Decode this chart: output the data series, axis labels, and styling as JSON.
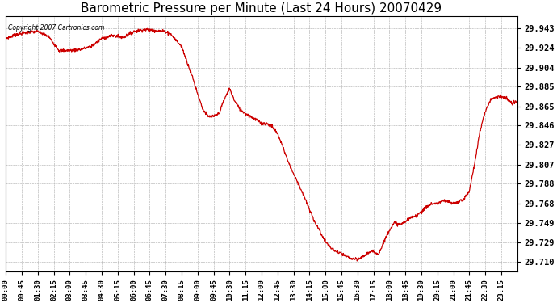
{
  "title": "Barometric Pressure per Minute (Last 24 Hours) 20070429",
  "copyright_text": "Copyright 2007 Cartronics.com",
  "line_color": "#cc0000",
  "background_color": "#ffffff",
  "grid_color": "#aaaaaa",
  "title_fontsize": 11,
  "yticks": [
    29.71,
    29.729,
    29.749,
    29.768,
    29.788,
    29.807,
    29.827,
    29.846,
    29.865,
    29.885,
    29.904,
    29.924,
    29.943
  ],
  "ylim": [
    29.7,
    29.955
  ],
  "xtick_labels": [
    "00:00",
    "00:45",
    "01:30",
    "02:15",
    "03:00",
    "03:45",
    "04:30",
    "05:15",
    "06:00",
    "06:45",
    "07:30",
    "08:15",
    "09:00",
    "09:45",
    "10:30",
    "11:15",
    "12:00",
    "12:45",
    "13:30",
    "14:15",
    "15:00",
    "15:45",
    "16:30",
    "17:15",
    "18:00",
    "18:45",
    "19:30",
    "20:15",
    "21:00",
    "21:45",
    "22:30",
    "23:15"
  ],
  "key_points": [
    [
      0,
      29.933
    ],
    [
      30,
      29.937
    ],
    [
      60,
      29.939
    ],
    [
      90,
      29.94
    ],
    [
      120,
      29.935
    ],
    [
      150,
      29.921
    ],
    [
      165,
      29.921
    ],
    [
      180,
      29.921
    ],
    [
      210,
      29.922
    ],
    [
      240,
      29.925
    ],
    [
      270,
      29.933
    ],
    [
      300,
      29.936
    ],
    [
      330,
      29.934
    ],
    [
      360,
      29.94
    ],
    [
      390,
      29.942
    ],
    [
      420,
      29.941
    ],
    [
      450,
      29.94
    ],
    [
      465,
      29.937
    ],
    [
      495,
      29.925
    ],
    [
      510,
      29.91
    ],
    [
      525,
      29.895
    ],
    [
      540,
      29.878
    ],
    [
      555,
      29.862
    ],
    [
      570,
      29.855
    ],
    [
      585,
      29.855
    ],
    [
      600,
      29.858
    ],
    [
      615,
      29.872
    ],
    [
      630,
      29.883
    ],
    [
      645,
      29.87
    ],
    [
      660,
      29.862
    ],
    [
      675,
      29.858
    ],
    [
      690,
      29.855
    ],
    [
      705,
      29.852
    ],
    [
      720,
      29.848
    ],
    [
      735,
      29.848
    ],
    [
      750,
      29.845
    ],
    [
      765,
      29.838
    ],
    [
      780,
      29.825
    ],
    [
      795,
      29.81
    ],
    [
      810,
      29.798
    ],
    [
      825,
      29.787
    ],
    [
      840,
      29.775
    ],
    [
      855,
      29.762
    ],
    [
      870,
      29.75
    ],
    [
      885,
      29.74
    ],
    [
      900,
      29.73
    ],
    [
      915,
      29.724
    ],
    [
      930,
      29.72
    ],
    [
      945,
      29.718
    ],
    [
      960,
      29.715
    ],
    [
      975,
      29.713
    ],
    [
      990,
      29.712
    ],
    [
      1005,
      29.715
    ],
    [
      1020,
      29.719
    ],
    [
      1035,
      29.72
    ],
    [
      1050,
      29.718
    ],
    [
      1065,
      29.73
    ],
    [
      1080,
      29.742
    ],
    [
      1095,
      29.749
    ],
    [
      1110,
      29.747
    ],
    [
      1125,
      29.75
    ],
    [
      1140,
      29.754
    ],
    [
      1155,
      29.756
    ],
    [
      1170,
      29.76
    ],
    [
      1185,
      29.765
    ],
    [
      1200,
      29.768
    ],
    [
      1215,
      29.768
    ],
    [
      1230,
      29.771
    ],
    [
      1245,
      29.77
    ],
    [
      1260,
      29.768
    ],
    [
      1275,
      29.77
    ],
    [
      1290,
      29.773
    ],
    [
      1305,
      29.78
    ],
    [
      1320,
      29.808
    ],
    [
      1335,
      29.84
    ],
    [
      1350,
      29.86
    ],
    [
      1365,
      29.872
    ],
    [
      1380,
      29.875
    ],
    [
      1395,
      29.875
    ],
    [
      1410,
      29.873
    ],
    [
      1425,
      29.868
    ],
    [
      1440,
      29.87
    ]
  ]
}
